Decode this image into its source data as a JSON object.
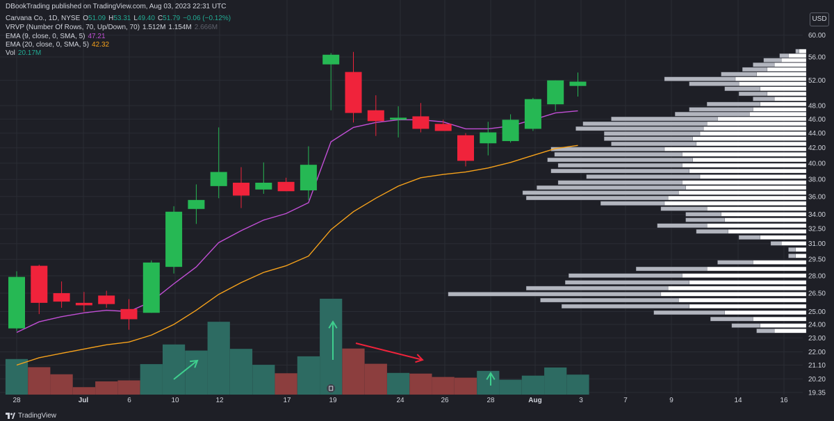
{
  "header": {
    "publisher": "DBookTrading published on TradingView.com, Aug 03, 2023 22:31 UTC",
    "symbol": "Carvana Co., 1D, NYSE",
    "o_label": "O",
    "o_value": "51.09",
    "h_label": "H",
    "h_value": "53.31",
    "l_label": "L",
    "l_value": "49.40",
    "c_label": "C",
    "c_value": "51.79",
    "change": "−0.06 (−0.12%)",
    "vrvp_label": "VRVP (Number Of Rows, 70, Up/Down, 70)",
    "vrvp_v1": "1.512M",
    "vrvp_v2": "1.154M",
    "vrvp_v3": "2.666M",
    "ema9_label": "EMA (9, close, 0, SMA, 5)",
    "ema9_value": "47.21",
    "ema20_label": "EMA (20, close, 0, SMA, 5)",
    "ema20_value": "42.32",
    "vol_label": "Vol",
    "vol_value": "20.17M"
  },
  "currency_button": "USD",
  "brand": "TradingView",
  "colors": {
    "background": "#1e1f26",
    "up": "#26b854",
    "down": "#f0233b",
    "vol_up": "#2d6b62",
    "vol_down": "#8c3e3e",
    "ema9": "#c24fd6",
    "ema20": "#f7a21b",
    "profile_up": "#ffffff",
    "profile_down": "#b2b5be",
    "annotation_green": "#3fcf8e",
    "annotation_red": "#f0233b"
  },
  "chart_data": {
    "type": "candlestick",
    "title": "Carvana Co., 1D, NYSE",
    "y_ticks": [
      "60.00",
      "56.00",
      "52.00",
      "48.00",
      "46.00",
      "44.00",
      "42.00",
      "40.00",
      "38.00",
      "36.00",
      "34.00",
      "32.50",
      "31.00",
      "29.50",
      "28.00",
      "26.50",
      "25.00",
      "24.00",
      "23.00",
      "22.00",
      "21.10",
      "20.20",
      "19.35"
    ],
    "x_ticks": [
      "28",
      "Jul",
      "6",
      "10",
      "12",
      "17",
      "19",
      "24",
      "26",
      "28",
      "Aug",
      "3",
      "7",
      "9",
      "14",
      "16"
    ],
    "y_scale": "log",
    "y_range": [
      19.35,
      60.0
    ],
    "candles": [
      {
        "o": 23.7,
        "h": 28.4,
        "l": 23.5,
        "c": 27.9
      },
      {
        "o": 28.9,
        "h": 29.0,
        "l": 24.8,
        "c": 25.7
      },
      {
        "o": 26.5,
        "h": 27.5,
        "l": 25.3,
        "c": 25.8
      },
      {
        "o": 25.7,
        "h": 26.6,
        "l": 25.0,
        "c": 25.5
      },
      {
        "o": 26.3,
        "h": 26.7,
        "l": 25.3,
        "c": 25.6
      },
      {
        "o": 25.2,
        "h": 26.0,
        "l": 23.6,
        "c": 24.4
      },
      {
        "o": 24.9,
        "h": 29.4,
        "l": 24.9,
        "c": 29.2
      },
      {
        "o": 28.8,
        "h": 34.9,
        "l": 28.2,
        "c": 34.3
      },
      {
        "o": 34.6,
        "h": 37.4,
        "l": 33.0,
        "c": 35.6
      },
      {
        "o": 37.2,
        "h": 44.8,
        "l": 35.8,
        "c": 38.9
      },
      {
        "o": 37.6,
        "h": 39.5,
        "l": 34.7,
        "c": 36.1
      },
      {
        "o": 36.8,
        "h": 40.1,
        "l": 36.3,
        "c": 37.6
      },
      {
        "o": 37.7,
        "h": 38.2,
        "l": 36.6,
        "c": 36.6
      },
      {
        "o": 36.7,
        "h": 42.2,
        "l": 35.6,
        "c": 39.8
      },
      {
        "o": 54.7,
        "h": 56.7,
        "l": 47.3,
        "c": 56.4
      },
      {
        "o": 53.4,
        "h": 56.9,
        "l": 45.5,
        "c": 46.9
      },
      {
        "o": 47.3,
        "h": 49.6,
        "l": 43.6,
        "c": 45.7
      },
      {
        "o": 45.9,
        "h": 47.9,
        "l": 43.4,
        "c": 46.2
      },
      {
        "o": 46.4,
        "h": 48.4,
        "l": 44.1,
        "c": 44.6
      },
      {
        "o": 45.3,
        "h": 45.9,
        "l": 44.3,
        "c": 44.3
      },
      {
        "o": 43.7,
        "h": 44.0,
        "l": 39.6,
        "c": 40.3
      },
      {
        "o": 42.6,
        "h": 45.6,
        "l": 41.0,
        "c": 44.1
      },
      {
        "o": 42.9,
        "h": 46.7,
        "l": 42.7,
        "c": 45.9
      },
      {
        "o": 44.6,
        "h": 49.2,
        "l": 44.3,
        "c": 49.0
      },
      {
        "o": 48.2,
        "h": 52.0,
        "l": 47.2,
        "c": 52.0
      },
      {
        "o": 51.09,
        "h": 53.31,
        "l": 49.4,
        "c": 51.79
      }
    ],
    "ema9": [
      23.4,
      24.2,
      24.6,
      24.9,
      25.1,
      25.0,
      25.8,
      27.3,
      28.8,
      31.1,
      32.3,
      33.4,
      34.1,
      35.3,
      42.8,
      44.8,
      45.5,
      45.9,
      45.9,
      45.6,
      44.6,
      44.6,
      45.0,
      45.9,
      46.9,
      47.21
    ],
    "ema20": [
      21.1,
      21.6,
      21.9,
      22.2,
      22.5,
      22.7,
      23.2,
      24.0,
      25.1,
      26.4,
      27.4,
      28.3,
      28.9,
      29.8,
      32.4,
      34.3,
      35.8,
      37.2,
      38.2,
      38.6,
      38.9,
      39.4,
      40.1,
      41.0,
      41.9,
      42.32
    ],
    "volume": [
      {
        "v": 10.5,
        "up": true
      },
      {
        "v": 8.1,
        "up": false
      },
      {
        "v": 6.0,
        "up": false
      },
      {
        "v": 2.2,
        "up": false
      },
      {
        "v": 3.9,
        "up": false
      },
      {
        "v": 4.2,
        "up": false
      },
      {
        "v": 9.0,
        "up": true
      },
      {
        "v": 14.8,
        "up": true
      },
      {
        "v": 13.0,
        "up": true
      },
      {
        "v": 21.5,
        "up": true
      },
      {
        "v": 13.5,
        "up": true
      },
      {
        "v": 8.8,
        "up": true
      },
      {
        "v": 6.3,
        "up": false
      },
      {
        "v": 11.3,
        "up": true
      },
      {
        "v": 28.3,
        "up": true
      },
      {
        "v": 13.6,
        "up": false
      },
      {
        "v": 9.1,
        "up": false
      },
      {
        "v": 6.4,
        "up": true
      },
      {
        "v": 6.2,
        "up": false
      },
      {
        "v": 5.2,
        "up": false
      },
      {
        "v": 5.0,
        "up": false
      },
      {
        "v": 7.0,
        "up": true
      },
      {
        "v": 4.4,
        "up": true
      },
      {
        "v": 5.6,
        "up": true
      },
      {
        "v": 8.0,
        "up": true
      },
      {
        "v": 5.9,
        "up": true
      }
    ],
    "volume_profile": [
      {
        "p": 57.0,
        "up": 4,
        "down": 2
      },
      {
        "p": 56.2,
        "up": 10,
        "down": 5
      },
      {
        "p": 55.4,
        "up": 14,
        "down": 10
      },
      {
        "p": 54.6,
        "up": 18,
        "down": 12
      },
      {
        "p": 53.8,
        "up": 22,
        "down": 14
      },
      {
        "p": 53.0,
        "up": 28,
        "down": 20
      },
      {
        "p": 52.2,
        "up": 40,
        "down": 40
      },
      {
        "p": 51.4,
        "up": 38,
        "down": 28
      },
      {
        "p": 50.6,
        "up": 26,
        "down": 20
      },
      {
        "p": 49.8,
        "up": 22,
        "down": 16
      },
      {
        "p": 49.0,
        "up": 18,
        "down": 12
      },
      {
        "p": 48.2,
        "up": 26,
        "down": 30
      },
      {
        "p": 47.4,
        "up": 30,
        "down": 36
      },
      {
        "p": 46.7,
        "up": 32,
        "down": 42
      },
      {
        "p": 46.0,
        "up": 50,
        "down": 60
      },
      {
        "p": 45.3,
        "up": 56,
        "down": 70
      },
      {
        "p": 44.6,
        "up": 58,
        "down": 72
      },
      {
        "p": 43.9,
        "up": 60,
        "down": 54
      },
      {
        "p": 43.2,
        "up": 64,
        "down": 50
      },
      {
        "p": 42.5,
        "up": 62,
        "down": 48
      },
      {
        "p": 41.8,
        "up": 80,
        "down": 64
      },
      {
        "p": 41.1,
        "up": 70,
        "down": 72
      },
      {
        "p": 40.4,
        "up": 64,
        "down": 82
      },
      {
        "p": 39.7,
        "up": 70,
        "down": 70
      },
      {
        "p": 39.0,
        "up": 66,
        "down": 78
      },
      {
        "p": 38.3,
        "up": 60,
        "down": 64
      },
      {
        "p": 37.6,
        "up": 70,
        "down": 70
      },
      {
        "p": 37.0,
        "up": 68,
        "down": 84
      },
      {
        "p": 36.4,
        "up": 72,
        "down": 88
      },
      {
        "p": 35.8,
        "up": 78,
        "down": 80
      },
      {
        "p": 35.2,
        "up": 80,
        "down": 36
      },
      {
        "p": 34.6,
        "up": 56,
        "down": 26
      },
      {
        "p": 34.0,
        "up": 48,
        "down": 20
      },
      {
        "p": 33.4,
        "up": 46,
        "down": 22
      },
      {
        "p": 32.8,
        "up": 56,
        "down": 28
      },
      {
        "p": 32.2,
        "up": 44,
        "down": 18
      },
      {
        "p": 31.6,
        "up": 26,
        "down": 12
      },
      {
        "p": 31.0,
        "up": 14,
        "down": 6
      },
      {
        "p": 30.4,
        "up": 6,
        "down": 4
      },
      {
        "p": 29.8,
        "up": 6,
        "down": 4
      },
      {
        "p": 29.2,
        "up": 30,
        "down": 20
      },
      {
        "p": 28.6,
        "up": 56,
        "down": 40
      },
      {
        "p": 28.0,
        "up": 70,
        "down": 64
      },
      {
        "p": 27.4,
        "up": 66,
        "down": 70
      },
      {
        "p": 26.9,
        "up": 78,
        "down": 80
      },
      {
        "p": 26.4,
        "up": 82,
        "down": 120
      },
      {
        "p": 25.9,
        "up": 72,
        "down": 78
      },
      {
        "p": 25.4,
        "up": 66,
        "down": 72
      },
      {
        "p": 24.9,
        "up": 46,
        "down": 40
      },
      {
        "p": 24.4,
        "up": 30,
        "down": 24
      },
      {
        "p": 23.9,
        "up": 26,
        "down": 16
      },
      {
        "p": 23.5,
        "up": 18,
        "down": 10
      }
    ]
  }
}
